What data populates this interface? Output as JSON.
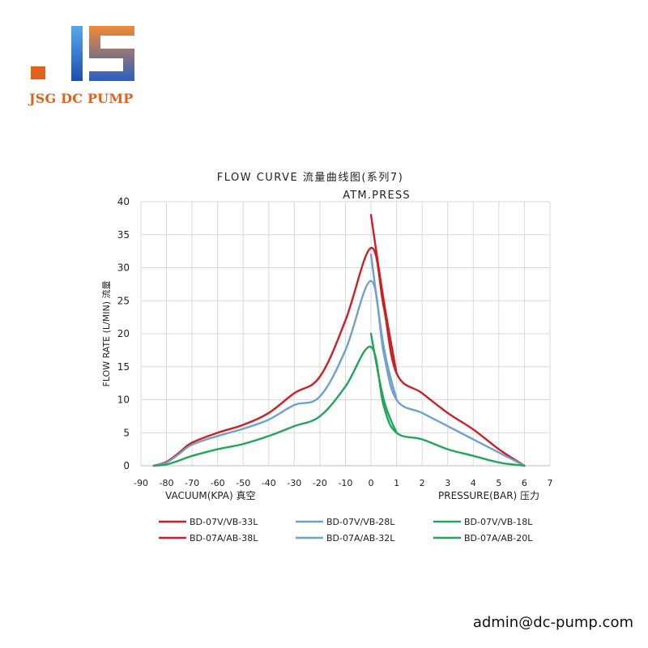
{
  "brand": {
    "logo_text": "JSG DC PUMP",
    "colors": {
      "blue": "#1e5fc0",
      "orange": "#e2611d"
    }
  },
  "footer": {
    "email": "admin@dc-pump.com"
  },
  "chart_data": {
    "type": "line",
    "title": "FLOW CURVE 流量曲线图(系列7)",
    "annotation": "ATM.PRESS",
    "ylabel": "FLOW RATE (L/MIN) 流量",
    "ylim": [
      0,
      40
    ],
    "y_ticks": [
      0,
      5,
      10,
      15,
      20,
      25,
      30,
      35,
      40
    ],
    "grid": true,
    "x_axis": {
      "vacuum_label": "VACUUM(KPA) 真空",
      "pressure_label": "PRESSURE(BAR) 压力",
      "vacuum_ticks": [
        -90,
        -80,
        -70,
        -60,
        -50,
        -40,
        -30,
        -20,
        -10,
        0
      ],
      "pressure_ticks": [
        1,
        2,
        3,
        4,
        5,
        6,
        7
      ]
    },
    "legend_position": "bottom",
    "series": [
      {
        "name": "BD-07V/VB-33L",
        "color": "#cc1f26",
        "vacuum": [
          [
            -85,
            0
          ],
          [
            -80,
            0.6
          ],
          [
            -75,
            2
          ],
          [
            -70,
            3.5
          ],
          [
            -60,
            5
          ],
          [
            -50,
            6.2
          ],
          [
            -40,
            8
          ],
          [
            -30,
            11
          ],
          [
            -20,
            13.5
          ],
          [
            -10,
            22
          ],
          [
            0,
            33
          ]
        ],
        "pressure": [
          [
            0,
            33
          ],
          [
            0.5,
            24
          ],
          [
            1,
            14
          ],
          [
            2,
            11
          ],
          [
            3,
            8
          ],
          [
            4,
            5.5
          ],
          [
            5,
            2.5
          ],
          [
            5.8,
            0.5
          ],
          [
            6,
            0
          ]
        ]
      },
      {
        "name": "BD-07A/AB-38L",
        "color": "#cc1f26",
        "vacuum": [
          [
            0,
            38
          ]
        ],
        "pressure": [
          [
            0,
            38
          ],
          [
            0.5,
            25
          ],
          [
            1,
            14
          ]
        ]
      },
      {
        "name": "BD-07V/VB-28L",
        "color": "#6fa1cc",
        "vacuum": [
          [
            -85,
            0
          ],
          [
            -80,
            0.5
          ],
          [
            -75,
            1.8
          ],
          [
            -70,
            3.2
          ],
          [
            -60,
            4.5
          ],
          [
            -50,
            5.6
          ],
          [
            -40,
            7
          ],
          [
            -30,
            9.2
          ],
          [
            -20,
            10.5
          ],
          [
            -10,
            17.5
          ],
          [
            0,
            28
          ]
        ],
        "pressure": [
          [
            0,
            28
          ],
          [
            0.5,
            17
          ],
          [
            1,
            10
          ],
          [
            2,
            8
          ],
          [
            3,
            6
          ],
          [
            4,
            4
          ],
          [
            5,
            2
          ],
          [
            5.8,
            0.4
          ],
          [
            6,
            0
          ]
        ]
      },
      {
        "name": "BD-07A/AB-32L",
        "color": "#6fa1cc",
        "vacuum": [
          [
            0,
            32
          ]
        ],
        "pressure": [
          [
            0,
            32
          ],
          [
            0.5,
            18
          ],
          [
            1,
            10
          ]
        ]
      },
      {
        "name": "BD-07V/VB-18L",
        "color": "#22a55a",
        "vacuum": [
          [
            -85,
            0
          ],
          [
            -80,
            0.2
          ],
          [
            -75,
            0.8
          ],
          [
            -70,
            1.5
          ],
          [
            -60,
            2.5
          ],
          [
            -50,
            3.3
          ],
          [
            -40,
            4.5
          ],
          [
            -30,
            6
          ],
          [
            -20,
            7.5
          ],
          [
            -10,
            12
          ],
          [
            0,
            18
          ]
        ],
        "pressure": [
          [
            0,
            18
          ],
          [
            0.5,
            9
          ],
          [
            1,
            5
          ],
          [
            2,
            4
          ],
          [
            3,
            2.5
          ],
          [
            4,
            1.5
          ],
          [
            5,
            0.5
          ],
          [
            5.8,
            0.1
          ],
          [
            6,
            0
          ]
        ]
      },
      {
        "name": "BD-07A/AB-20L",
        "color": "#22a55a",
        "vacuum": [
          [
            0,
            20
          ]
        ],
        "pressure": [
          [
            0,
            20
          ],
          [
            0.5,
            10
          ],
          [
            1,
            5
          ]
        ]
      }
    ]
  }
}
